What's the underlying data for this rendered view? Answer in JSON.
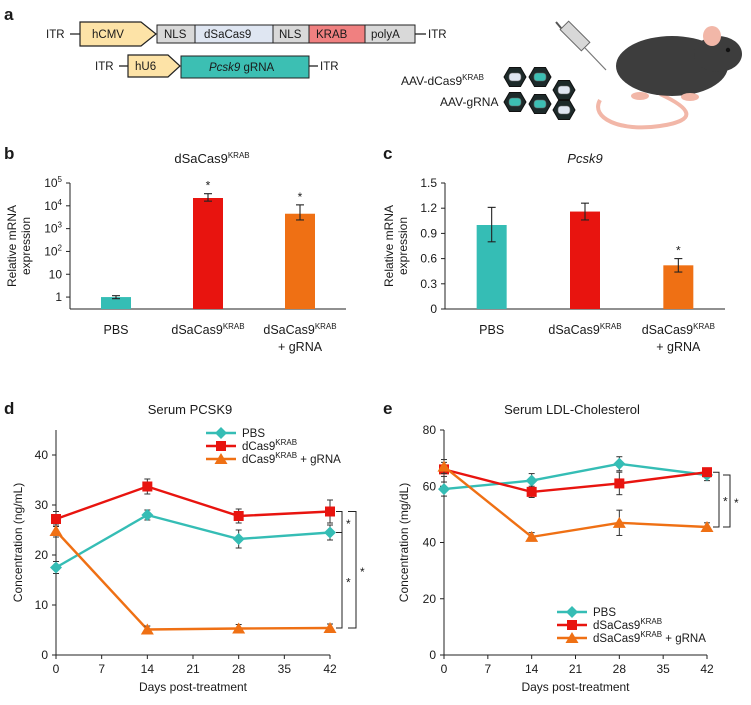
{
  "panels": {
    "a": {
      "letter": "a",
      "construct1": {
        "itr_left": "ITR",
        "itr_right": "ITR",
        "promoter": "hCMV",
        "nls1": "NLS",
        "cas": "dSaCas9",
        "nls2": "NLS",
        "krab": "KRAB",
        "polya": "polyA"
      },
      "construct2": {
        "itr_left": "ITR",
        "itr_right": "ITR",
        "promoter": "hU6",
        "grna_gene": "Pcsk9",
        "grna_label": "gRNA"
      },
      "aav_cas_prefix": "AAV-dCas9",
      "aav_cas_sup": "KRAB",
      "aav_grna": "AAV-gRNA",
      "colors": {
        "promoter": "#fde3a7",
        "nls": "#d9d9d9",
        "cas": "#dfe6f2",
        "krab": "#f08080",
        "polya": "#d9d9d9",
        "grna": "#3cbfb3",
        "mouse": "#3d3d3d",
        "tail": "#f2b7a8"
      }
    },
    "b": {
      "letter": "b"
    },
    "c": {
      "letter": "c"
    },
    "d": {
      "letter": "d"
    },
    "e": {
      "letter": "e"
    }
  },
  "chart_data": [
    {
      "id": "b",
      "type": "bar",
      "yscale": "log",
      "title": "dSaCas9",
      "title_sup": "KRAB",
      "ylabel": [
        "Relative mRNA",
        "expression"
      ],
      "categories": [
        {
          "line1": "PBS",
          "line1_sup": "",
          "line2": ""
        },
        {
          "line1": "dSaCas9",
          "line1_sup": "KRAB",
          "line2": ""
        },
        {
          "line1": "dSaCas9",
          "line1_sup": "KRAB",
          "line2": "+ gRNA"
        }
      ],
      "values": [
        1,
        22000,
        4500
      ],
      "err_low": [
        0.85,
        16000,
        2400
      ],
      "err_high": [
        1.15,
        34000,
        11000
      ],
      "colors": [
        "#35bdb5",
        "#e8140f",
        "#ef7014"
      ],
      "significance": [
        "",
        "*",
        "*"
      ],
      "yticks": [
        {
          "value": 1,
          "label": "1"
        },
        {
          "value": 10,
          "label": "10"
        },
        {
          "value": 100,
          "base": "10",
          "exp": "2"
        },
        {
          "value": 1000,
          "base": "10",
          "exp": "3"
        },
        {
          "value": 10000,
          "base": "10",
          "exp": "4"
        },
        {
          "value": 100000,
          "base": "10",
          "exp": "5"
        }
      ],
      "ylim": [
        0.3,
        100000
      ]
    },
    {
      "id": "c",
      "type": "bar",
      "yscale": "linear",
      "title": "Pcsk9",
      "title_sup": "",
      "ylabel": [
        "Relative mRNA",
        "expression"
      ],
      "categories": [
        {
          "line1": "PBS",
          "line1_sup": "",
          "line2": ""
        },
        {
          "line1": "dSaCas9",
          "line1_sup": "KRAB",
          "line2": ""
        },
        {
          "line1": "dSaCas9",
          "line1_sup": "KRAB",
          "line2": "+ gRNA"
        }
      ],
      "values": [
        1.0,
        1.16,
        0.52
      ],
      "err_low": [
        0.8,
        1.06,
        0.44
      ],
      "err_high": [
        1.21,
        1.26,
        0.6
      ],
      "colors": [
        "#35bdb5",
        "#e8140f",
        "#ef7014"
      ],
      "significance": [
        "",
        "",
        "*"
      ],
      "yticks": [
        {
          "value": 0,
          "label": "0"
        },
        {
          "value": 0.3,
          "label": "0.3"
        },
        {
          "value": 0.6,
          "label": "0.6"
        },
        {
          "value": 0.9,
          "label": "0.9"
        },
        {
          "value": 1.2,
          "label": "1.2"
        },
        {
          "value": 1.5,
          "label": "1.5"
        }
      ],
      "ylim": [
        0,
        1.5
      ]
    },
    {
      "id": "d",
      "type": "line",
      "title": "Serum PCSK9",
      "xlabel": "Days post-treatment",
      "ylabel": "Concentration (ng/mL)",
      "xlim": [
        0,
        42
      ],
      "ylim": [
        0,
        45
      ],
      "xticks": [
        0,
        7,
        14,
        21,
        28,
        35,
        42
      ],
      "yticks": [
        0,
        10,
        20,
        30,
        40
      ],
      "series": [
        {
          "name": "PBS",
          "name_sup": "",
          "name_suffix": "",
          "color": "#35bdb5",
          "marker": "diamond",
          "x": [
            0,
            14,
            28,
            42
          ],
          "y": [
            17.5,
            28,
            23.2,
            24.5
          ],
          "err": [
            1.2,
            1.0,
            1.8,
            1.5
          ]
        },
        {
          "name": "dCas9",
          "name_sup": "KRAB",
          "name_suffix": "",
          "color": "#e8140f",
          "marker": "square",
          "x": [
            0,
            14,
            28,
            42
          ],
          "y": [
            27.2,
            33.7,
            27.8,
            28.7
          ],
          "err": [
            1.5,
            1.5,
            1.4,
            2.3
          ]
        },
        {
          "name": "dCas9",
          "name_sup": "KRAB",
          "name_suffix": " + gRNA",
          "color": "#ef7014",
          "marker": "triangle",
          "x": [
            0,
            14,
            28,
            42
          ],
          "y": [
            24.8,
            5.1,
            5.3,
            5.4
          ],
          "err": [
            1.2,
            0.7,
            0.8,
            0.8
          ]
        }
      ],
      "legend_position": "top-right",
      "significance": [
        "*",
        "*",
        "*"
      ]
    },
    {
      "id": "e",
      "type": "line",
      "title": "Serum LDL-Cholesterol",
      "xlabel": "Days post-treatment",
      "ylabel": "Concentration (mg/dL)",
      "xlim": [
        0,
        42
      ],
      "ylim": [
        0,
        80
      ],
      "xticks": [
        0,
        7,
        14,
        21,
        28,
        35,
        42
      ],
      "yticks": [
        0,
        20,
        40,
        60,
        80
      ],
      "series": [
        {
          "name": "PBS",
          "name_sup": "",
          "name_suffix": "",
          "color": "#35bdb5",
          "marker": "diamond",
          "x": [
            0,
            14,
            28,
            42
          ],
          "y": [
            59,
            62,
            68,
            64
          ],
          "err": [
            2.5,
            2.5,
            2.5,
            2
          ]
        },
        {
          "name": "dSaCas9",
          "name_sup": "KRAB",
          "name_suffix": "",
          "color": "#e8140f",
          "marker": "square",
          "x": [
            0,
            14,
            28,
            42
          ],
          "y": [
            66,
            58,
            61,
            65
          ],
          "err": [
            2.5,
            2,
            4,
            1.5
          ]
        },
        {
          "name": "dSaCas9",
          "name_sup": "KRAB",
          "name_suffix": " + gRNA",
          "color": "#ef7014",
          "marker": "triangle",
          "x": [
            0,
            14,
            28,
            42
          ],
          "y": [
            67,
            42,
            47,
            45.5
          ],
          "err": [
            2.5,
            1.5,
            4.5,
            1.5
          ]
        }
      ],
      "legend_position": "bottom-right",
      "significance": [
        "*",
        "*"
      ]
    }
  ]
}
